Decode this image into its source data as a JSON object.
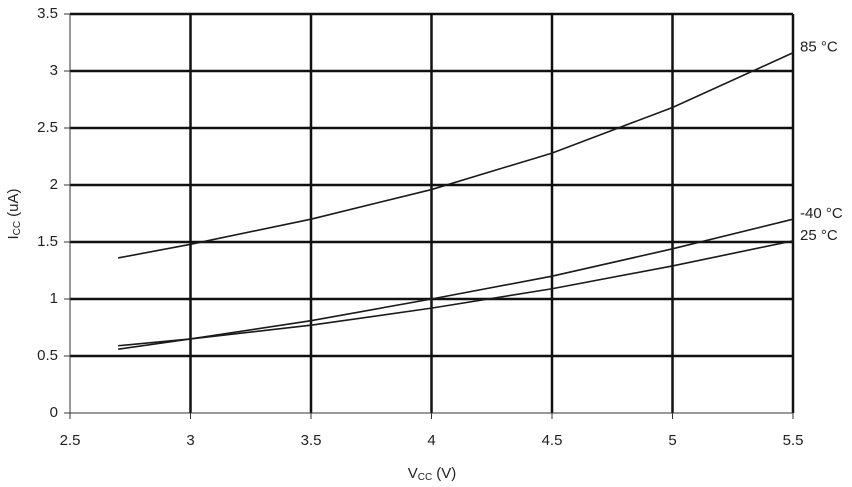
{
  "chart_data": {
    "type": "line",
    "xlabel": {
      "text": "V",
      "subscript": "CC",
      "unit": "(V)"
    },
    "ylabel": {
      "text": "I",
      "subscript": "CC",
      "unit": "(uA)"
    },
    "x": [
      2.7,
      3,
      3.5,
      4,
      4.5,
      5,
      5.5
    ],
    "series": [
      {
        "name": "85 °C",
        "color": "#1a1a1a",
        "values": [
          1.36,
          1.48,
          1.7,
          1.96,
          2.28,
          2.68,
          3.16
        ]
      },
      {
        "name": "-40 °C",
        "color": "#1a1a1a",
        "values": [
          0.56,
          0.65,
          0.81,
          1.0,
          1.2,
          1.44,
          1.7
        ]
      },
      {
        "name": "25 °C",
        "color": "#1a1a1a",
        "values": [
          0.59,
          0.65,
          0.77,
          0.92,
          1.09,
          1.29,
          1.51
        ]
      }
    ],
    "xlim": [
      2.5,
      5.5
    ],
    "xticks": [
      2.5,
      3,
      3.5,
      4,
      4.5,
      5,
      5.5
    ],
    "ylim": [
      0,
      3.5
    ],
    "yticks": [
      0,
      0.5,
      1,
      1.5,
      2,
      2.5,
      3,
      3.5
    ],
    "grid": true
  }
}
